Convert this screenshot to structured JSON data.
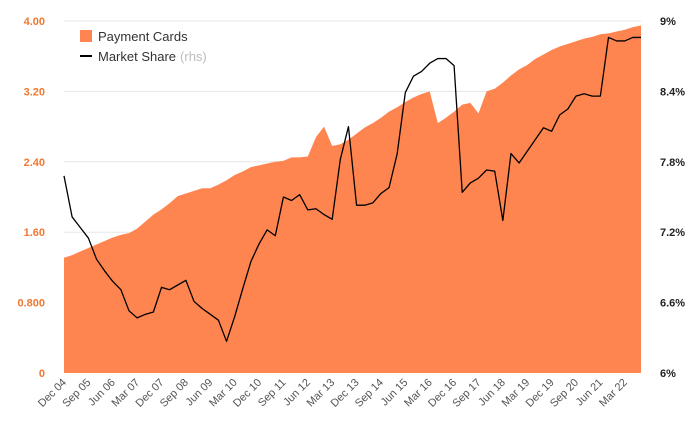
{
  "colors": {
    "area": "#ff8550",
    "line": "#000000",
    "left_axis_text": "#f07830",
    "right_axis_text": "#222222",
    "x_axis_text": "#555555",
    "grid": "#e6e6e6"
  },
  "legend": {
    "area_label": "Payment Cards",
    "line_label": "Market Share",
    "line_note": "(rhs)"
  },
  "chart_data": {
    "type": "area",
    "grid": true,
    "legend_position": "top-left",
    "y_left": {
      "min": 0,
      "max": 4,
      "ticks": [
        0,
        0.8,
        1.6,
        2.4,
        3.2,
        4.0
      ],
      "tick_labels": [
        "0",
        "0.800",
        "1.60",
        "2.40",
        "3.20",
        "4.00"
      ]
    },
    "y_right": {
      "min": 6,
      "max": 9,
      "ticks": [
        6,
        6.6,
        7.2,
        7.8,
        8.4,
        9
      ],
      "tick_labels": [
        "6%",
        "6.6%",
        "7.2%",
        "7.8%",
        "8.4%",
        "9%"
      ]
    },
    "x": [
      "Dec 04",
      "Mar 05",
      "Jun 05",
      "Sep 05",
      "Dec 05",
      "Mar 06",
      "Jun 06",
      "Sep 06",
      "Dec 06",
      "Mar 07",
      "Jun 07",
      "Sep 07",
      "Dec 07",
      "Mar 08",
      "Jun 08",
      "Sep 08",
      "Dec 08",
      "Mar 09",
      "Jun 09",
      "Sep 09",
      "Dec 09",
      "Mar 10",
      "Jun 10",
      "Sep 10",
      "Dec 10",
      "Mar 11",
      "Jun 11",
      "Sep 11",
      "Dec 11",
      "Mar 12",
      "Jun 12",
      "Sep 12",
      "Dec 12",
      "Mar 13",
      "Jun 13",
      "Sep 13",
      "Dec 13",
      "Mar 14",
      "Jun 14",
      "Sep 14",
      "Dec 14",
      "Mar 15",
      "Jun 15",
      "Sep 15",
      "Dec 15",
      "Mar 16",
      "Jun 16",
      "Sep 16",
      "Dec 16",
      "Mar 17",
      "Jun 17",
      "Sep 17",
      "Dec 17",
      "Mar 18",
      "Jun 18",
      "Sep 18",
      "Dec 18",
      "Mar 19",
      "Jun 19",
      "Sep 19",
      "Dec 19",
      "Mar 20",
      "Jun 20",
      "Sep 20",
      "Dec 20",
      "Mar 21",
      "Jun 21",
      "Sep 21",
      "Dec 21",
      "Mar 22",
      "Jun 22",
      "Sep 22"
    ],
    "x_tick_labels": [
      "Dec 04",
      "Sep 05",
      "Jun 06",
      "Mar 07",
      "Dec 07",
      "Sep 08",
      "Jun 09",
      "Mar 10",
      "Dec 10",
      "Sep 11",
      "Jun 12",
      "Mar 13",
      "Dec 13",
      "Sep 14",
      "Jun 15",
      "Mar 16",
      "Dec 16",
      "Sep 17",
      "Jun 18",
      "Mar 19",
      "Dec 19",
      "Sep 20",
      "Jun 21",
      "Mar 22"
    ],
    "series": [
      {
        "name": "Payment Cards",
        "kind": "area",
        "axis": "left",
        "values": [
          1.31,
          1.34,
          1.38,
          1.42,
          1.46,
          1.5,
          1.54,
          1.57,
          1.59,
          1.64,
          1.72,
          1.8,
          1.86,
          1.93,
          2.01,
          2.04,
          2.07,
          2.1,
          2.1,
          2.14,
          2.19,
          2.25,
          2.29,
          2.34,
          2.36,
          2.38,
          2.4,
          2.41,
          2.45,
          2.45,
          2.46,
          2.68,
          2.8,
          2.58,
          2.6,
          2.65,
          2.72,
          2.79,
          2.84,
          2.9,
          2.97,
          3.02,
          3.08,
          3.13,
          3.17,
          3.2,
          2.84,
          2.9,
          2.97,
          3.05,
          3.07,
          2.95,
          3.2,
          3.23,
          3.3,
          3.38,
          3.45,
          3.5,
          3.57,
          3.62,
          3.67,
          3.71,
          3.74,
          3.77,
          3.8,
          3.82,
          3.85,
          3.86,
          3.88,
          3.9,
          3.93,
          3.95
        ]
      },
      {
        "name": "Market Share",
        "kind": "line",
        "axis": "right",
        "values": [
          7.68,
          7.33,
          7.24,
          7.15,
          6.97,
          6.87,
          6.78,
          6.71,
          6.53,
          6.47,
          6.5,
          6.52,
          6.73,
          6.71,
          6.75,
          6.79,
          6.61,
          6.55,
          6.5,
          6.45,
          6.27,
          6.48,
          6.72,
          6.95,
          7.1,
          7.22,
          7.17,
          7.5,
          7.47,
          7.52,
          7.39,
          7.4,
          7.35,
          7.31,
          7.82,
          8.1,
          7.43,
          7.43,
          7.45,
          7.53,
          7.58,
          7.87,
          8.39,
          8.53,
          8.57,
          8.64,
          8.68,
          8.68,
          8.62,
          7.54,
          7.62,
          7.66,
          7.73,
          7.72,
          7.3,
          7.87,
          7.79,
          7.89,
          7.99,
          8.09,
          8.06,
          8.2,
          8.25,
          8.36,
          8.38,
          8.36,
          8.36,
          8.86,
          8.83,
          8.83,
          8.86,
          8.86
        ]
      }
    ]
  }
}
